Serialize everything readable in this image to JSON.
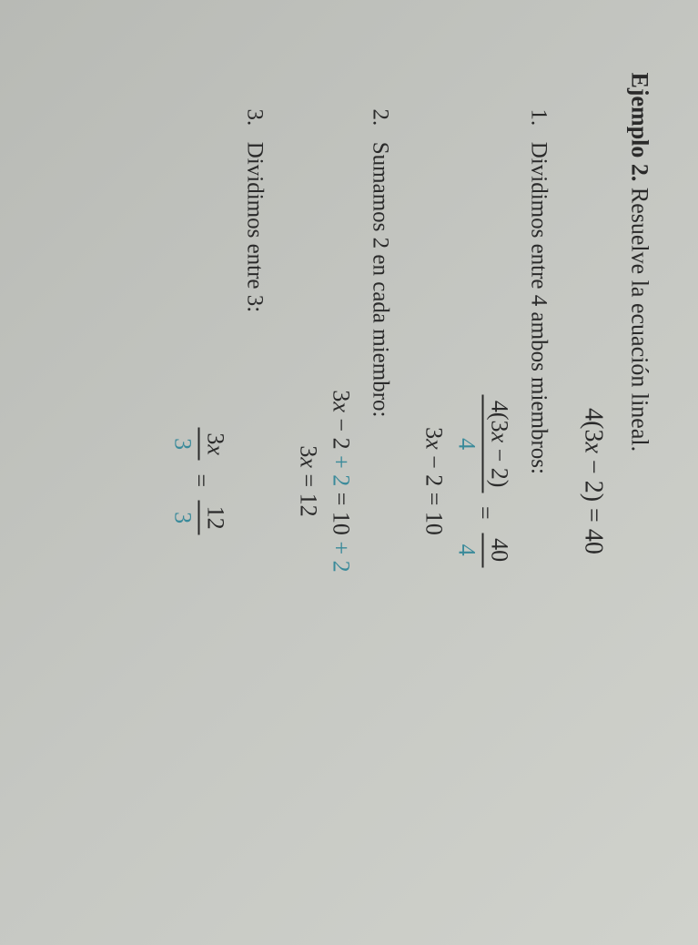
{
  "colors": {
    "text": "#2a2a2a",
    "highlight": "#3a8a9a",
    "background_gradient": [
      "#b8bab5",
      "#c5c7c2",
      "#d0d2cc"
    ]
  },
  "typography": {
    "body_fontsize": 26,
    "heading_fontsize": 26,
    "family": "Georgia, Times New Roman, serif"
  },
  "heading": {
    "bold": "Ejemplo 2.",
    "rest": "Resuelve la ecuación lineal."
  },
  "main_equation": {
    "lhs": "4(3",
    "var": "x",
    "lhs2": " − 2) = 40"
  },
  "steps": [
    {
      "num": "1.",
      "label": "Dividimos entre 4 ambos miembros:",
      "equations": {
        "frac_left_num": "4(3x − 2)",
        "frac_left_den": "4",
        "frac_right_num": "40",
        "frac_right_den": "4",
        "result_lhs": "3",
        "result_var": "x",
        "result_rest": " − 2 = 10"
      }
    },
    {
      "num": "2.",
      "label": "Sumamos 2 en cada miembro:",
      "equations": {
        "line1_a": "3",
        "line1_var": "x",
        "line1_b": " − 2 ",
        "line1_hl1": "+ 2",
        "line1_c": " = 10 ",
        "line1_hl2": "+ 2",
        "line2_a": "3",
        "line2_var": "x",
        "line2_b": " = 12"
      }
    },
    {
      "num": "3.",
      "label": "Dividimos entre 3:",
      "equations": {
        "frac_left_num_a": "3",
        "frac_left_num_var": "x",
        "frac_left_den": "3",
        "frac_right_num": "12",
        "frac_right_den": "3"
      }
    }
  ]
}
